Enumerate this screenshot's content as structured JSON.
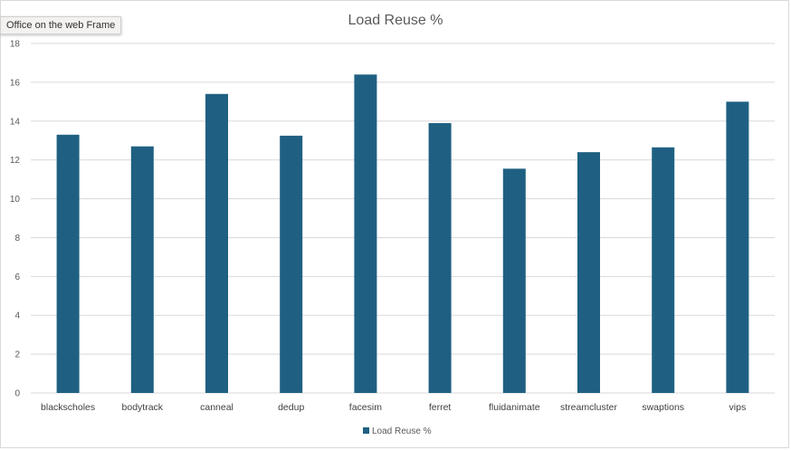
{
  "tooltip": "Office on the web Frame",
  "chart_data": {
    "type": "bar",
    "title": "Load Reuse %",
    "xlabel": "",
    "ylabel": "",
    "categories": [
      "blackscholes",
      "bodytrack",
      "canneal",
      "dedup",
      "facesim",
      "ferret",
      "fluidanimate",
      "streamcluster",
      "swaptions",
      "vips"
    ],
    "series": [
      {
        "name": "Load Reuse %",
        "values": [
          13.3,
          12.7,
          15.4,
          13.25,
          16.4,
          13.9,
          11.55,
          12.4,
          12.65,
          15.0
        ]
      }
    ],
    "ylim": [
      0,
      18
    ],
    "yticks": [
      0,
      2,
      4,
      6,
      8,
      10,
      12,
      14,
      16,
      18
    ],
    "grid": true,
    "legend": "bottom",
    "bar_color": "#1f6082"
  }
}
